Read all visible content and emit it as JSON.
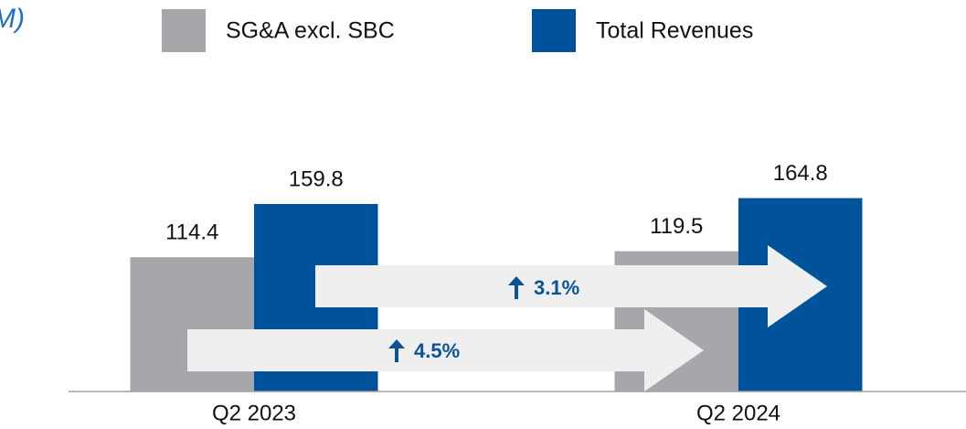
{
  "chart_data": {
    "type": "bar",
    "title": "M)",
    "categories": [
      "Q2 2023",
      "Q2 2024"
    ],
    "series": [
      {
        "name": "SG&A excl. SBC",
        "color": "#a6a7ab",
        "values": [
          114.4,
          119.5
        ]
      },
      {
        "name": "Total Revenues",
        "color": "#00539b",
        "values": [
          159.8,
          164.8
        ]
      }
    ],
    "ylim": [
      0,
      200
    ],
    "annotations": [
      "3.1%",
      "4.5%"
    ]
  }
}
